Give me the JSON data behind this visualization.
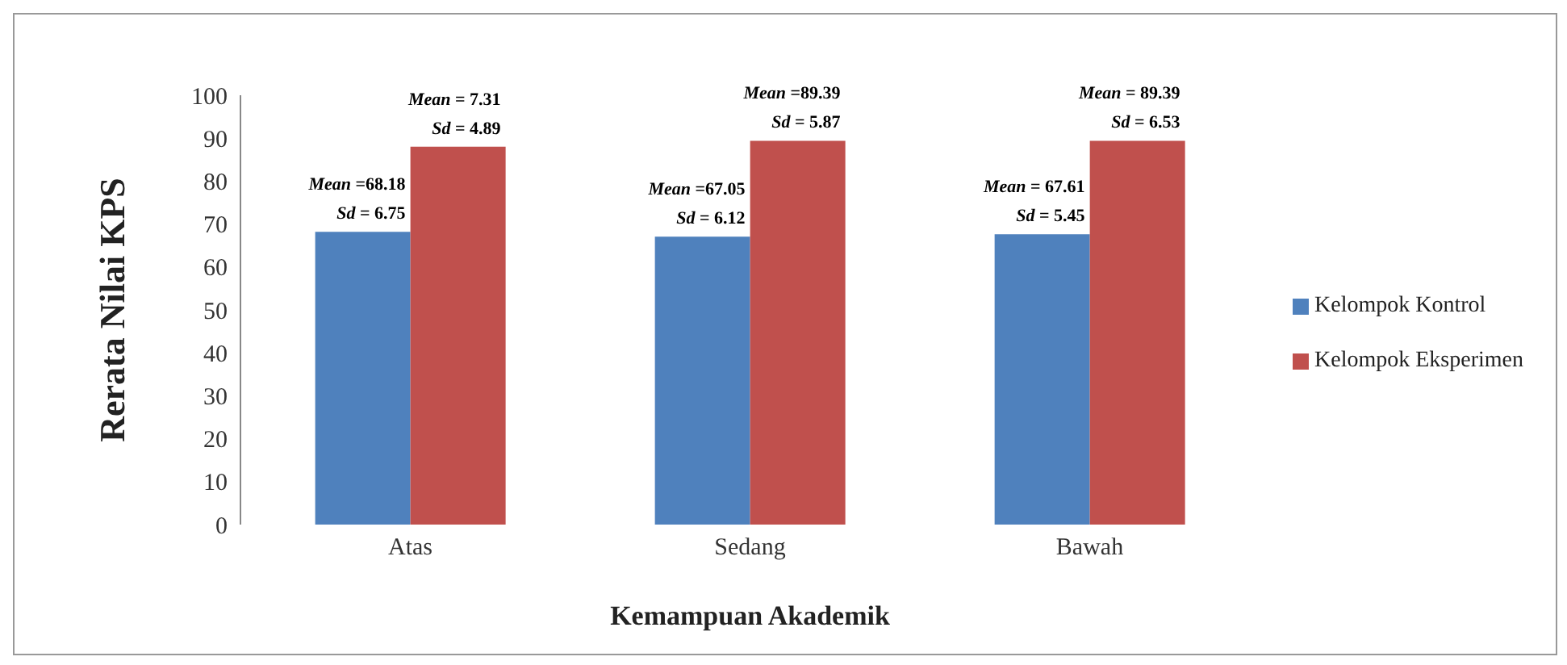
{
  "chart_data": {
    "type": "bar",
    "xlabel": "Kemampuan Akademik",
    "ylabel": "Rerata Nilai KPS",
    "categories": [
      "Atas",
      "Sedang",
      "Bawah"
    ],
    "series": [
      {
        "name": "Kelompok Kontrol",
        "color": "#4f81bd",
        "values": [
          68.18,
          67.05,
          67.61
        ],
        "value_labels": [
          "Mean =68.18\nSd = 6.75",
          "Mean =67.05\nSd = 6.12",
          "Mean = 67.61\nSd = 5.45"
        ]
      },
      {
        "name": "Kelompok Eksperimen",
        "color": "#c0504d",
        "values": [
          88,
          89.39,
          89.39
        ],
        "value_labels": [
          "Mean = 7.31\nSd = 4.89",
          "Mean =89.39\nSd = 5.87",
          "Mean = 89.39\nSd = 6.53"
        ]
      }
    ],
    "ylim": [
      0,
      100
    ],
    "yticks": [
      0,
      10,
      20,
      30,
      40,
      50,
      60,
      70,
      80,
      90,
      100
    ],
    "grid": false,
    "legend": "right"
  }
}
